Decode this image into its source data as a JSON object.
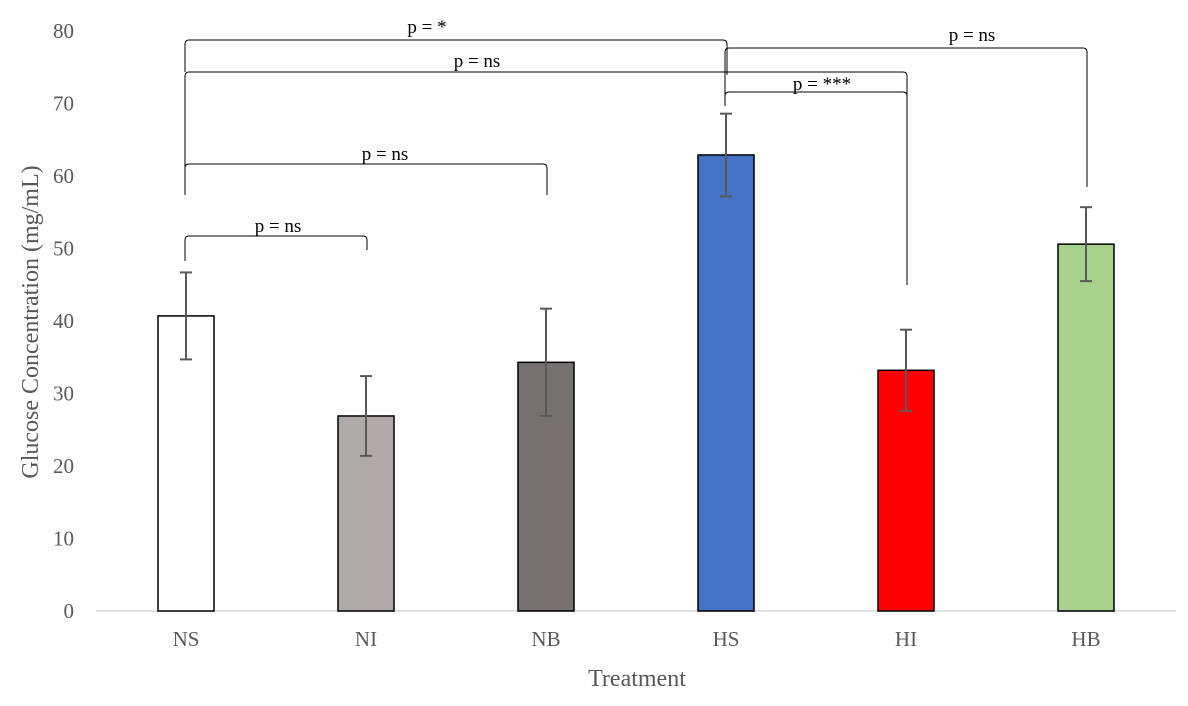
{
  "chart_data": {
    "type": "bar",
    "title": "",
    "xlabel": "Treatment",
    "ylabel": "Glucose Concentration (mg/mL)",
    "ylim": [
      0,
      80
    ],
    "yticks": [
      0,
      10,
      20,
      30,
      40,
      50,
      60,
      70,
      80
    ],
    "grid": false,
    "legend": "none",
    "categories": [
      "NS",
      "NI",
      "NB",
      "HS",
      "HI",
      "HB"
    ],
    "values": [
      40.7,
      26.9,
      34.3,
      62.9,
      33.2,
      50.6
    ],
    "errors": [
      6.0,
      5.5,
      7.4,
      5.7,
      5.6,
      5.1
    ],
    "colors": [
      "#ffffff",
      "#aeaaa9",
      "#767171",
      "#4472c4",
      "#ff0000",
      "#a9d18e"
    ],
    "comparisons": [
      {
        "from": "NS",
        "to": "NI",
        "label": "p = ns"
      },
      {
        "from": "NS",
        "to": "NB",
        "label": "p = ns"
      },
      {
        "from": "NS",
        "to": "HS",
        "label": "p = *"
      },
      {
        "from": "NS",
        "to": "HI",
        "label": "p = ns"
      },
      {
        "from": "HS",
        "to": "HI",
        "label": "p = ***"
      },
      {
        "from": "HS",
        "to": "HB",
        "label": "p = ns"
      }
    ]
  }
}
